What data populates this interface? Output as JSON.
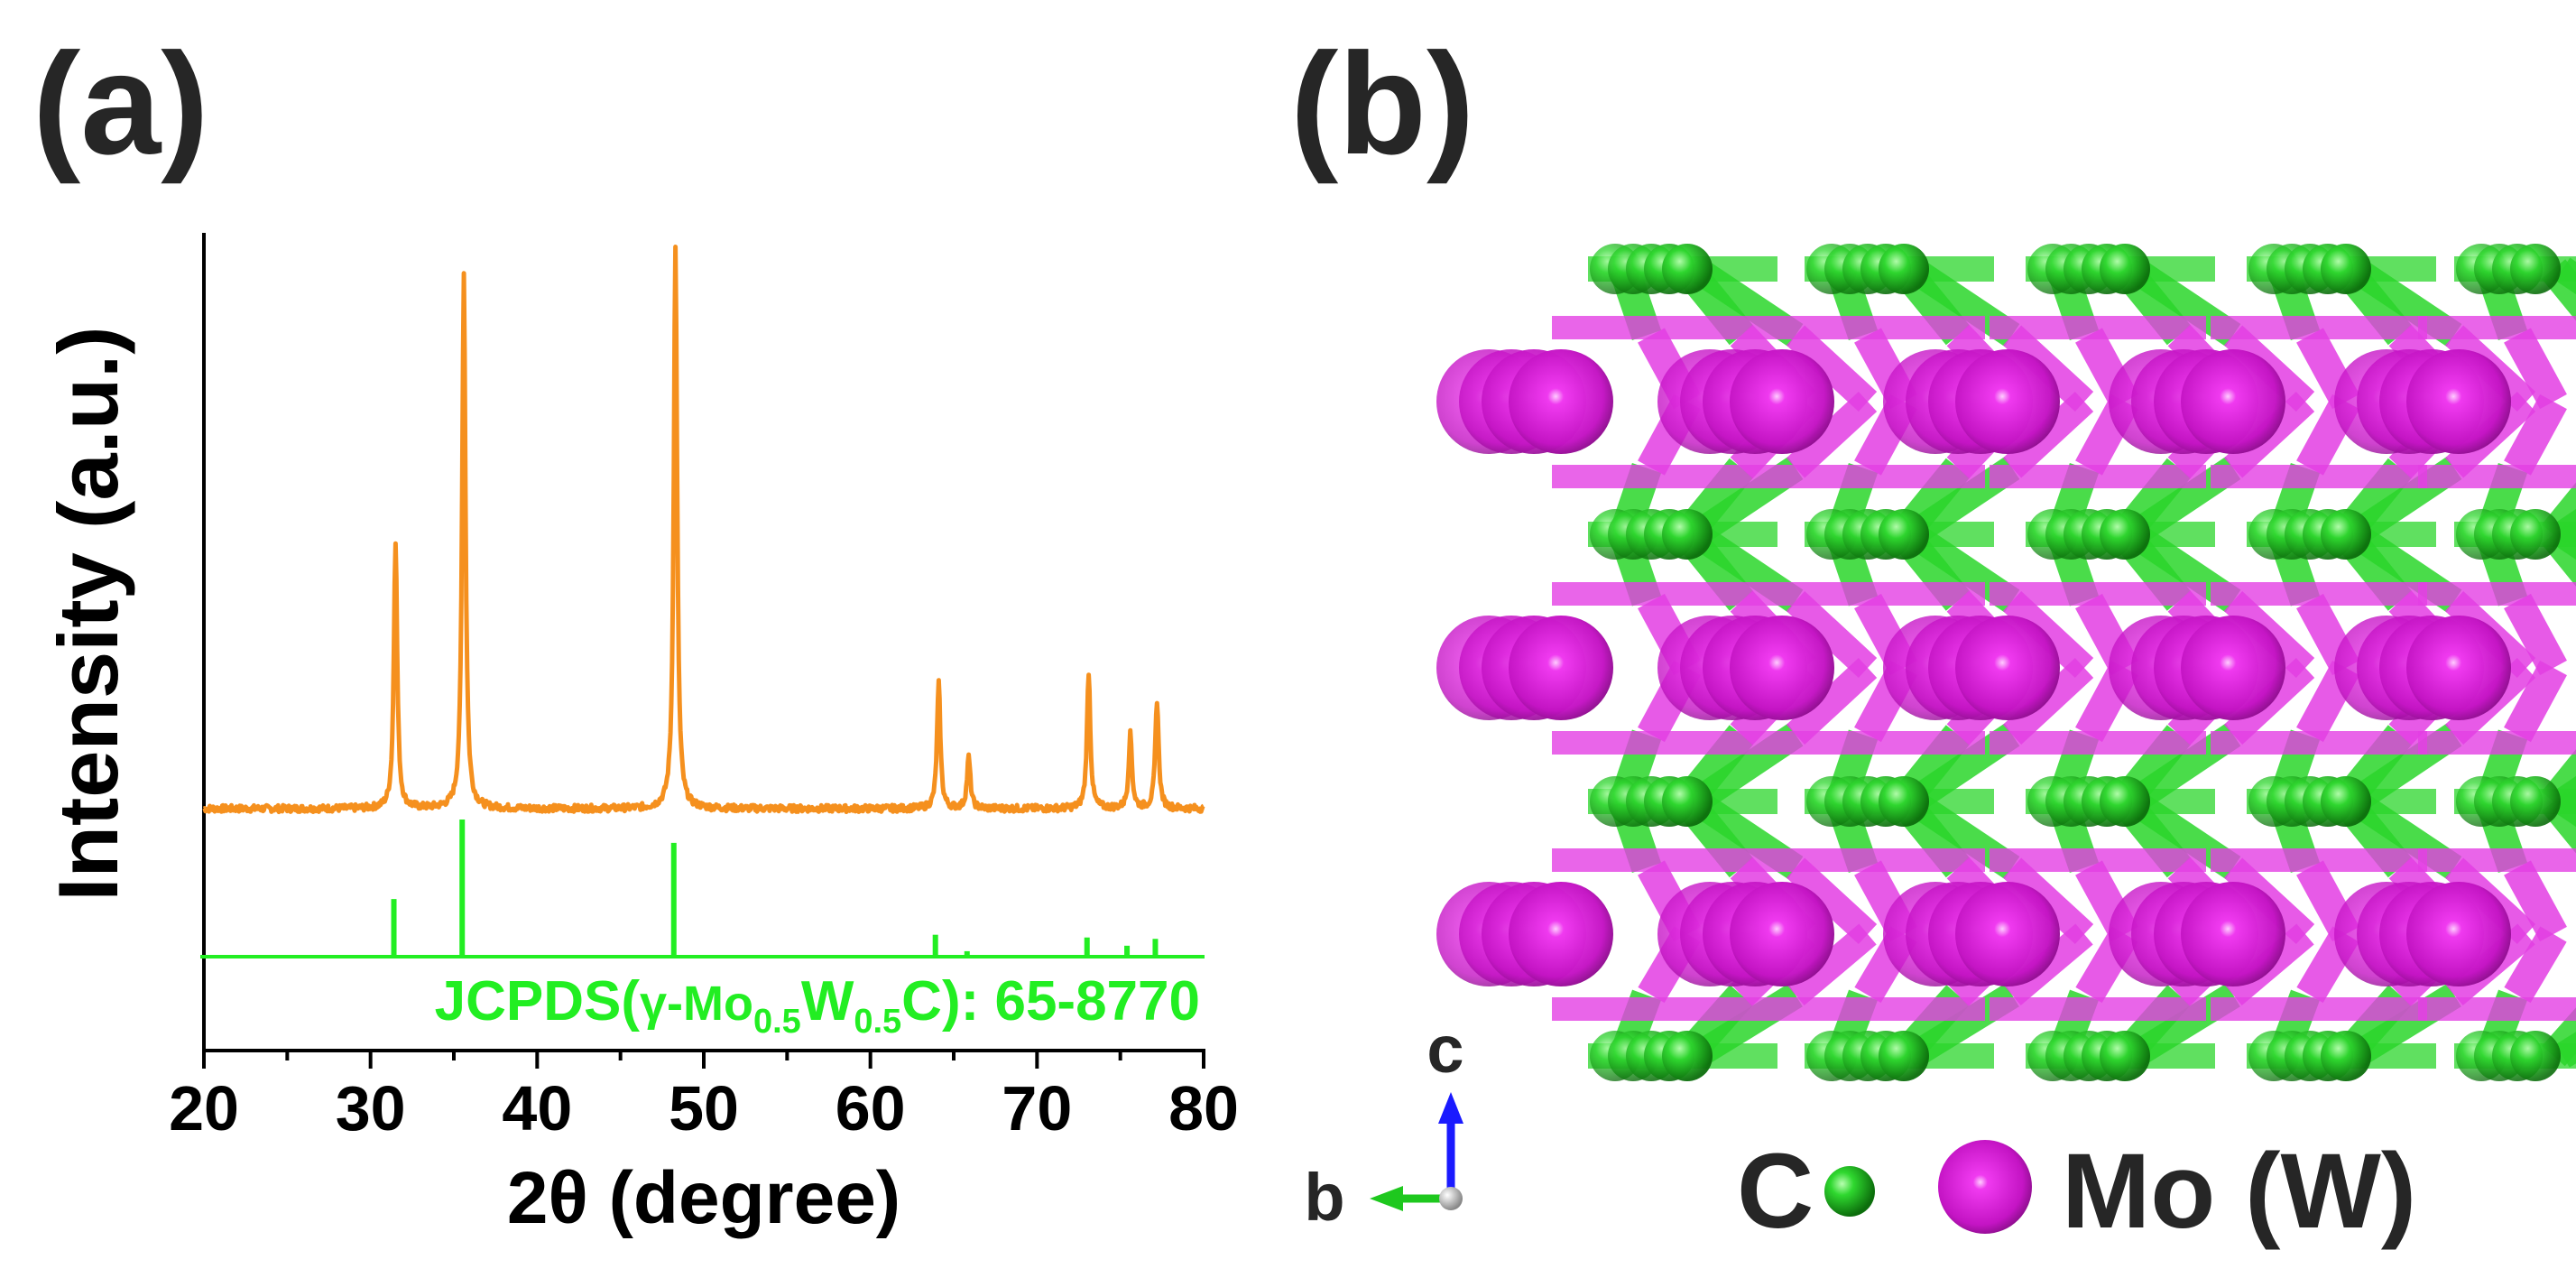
{
  "panel_a": {
    "label": "(a)"
  },
  "panel_b": {
    "label": "(b)"
  },
  "chart_data": {
    "type": "line",
    "xlabel": "2θ (degree)",
    "ylabel": "Intensity (a.u.)",
    "xlim": [
      20,
      80
    ],
    "xticks": [
      "20",
      "30",
      "40",
      "50",
      "60",
      "70",
      "80"
    ],
    "grid": false,
    "series": [
      {
        "name": "",
        "color": "#f5901e",
        "baseline": 0.0,
        "peaks": [
          {
            "x": 31.5,
            "y": 0.47
          },
          {
            "x": 35.6,
            "y": 0.94
          },
          {
            "x": 48.3,
            "y": 0.99
          },
          {
            "x": 64.1,
            "y": 0.22
          },
          {
            "x": 65.9,
            "y": 0.09
          },
          {
            "x": 73.1,
            "y": 0.24
          },
          {
            "x": 75.6,
            "y": 0.13
          },
          {
            "x": 77.2,
            "y": 0.19
          }
        ]
      },
      {
        "name": "JCPDS(γ-Mo0.5W0.5C): 65-8770",
        "color": "#22ee22",
        "type": "stick",
        "sticks": [
          {
            "x": 31.4,
            "y": 0.42
          },
          {
            "x": 35.5,
            "y": 1.0
          },
          {
            "x": 48.2,
            "y": 0.83
          },
          {
            "x": 63.9,
            "y": 0.16
          },
          {
            "x": 65.8,
            "y": 0.04
          },
          {
            "x": 73.0,
            "y": 0.14
          },
          {
            "x": 75.4,
            "y": 0.08
          },
          {
            "x": 77.1,
            "y": 0.13
          }
        ]
      }
    ],
    "reference_label": {
      "prefix": "JCPDS(",
      "gamma": "γ-Mo",
      "sub1": "0.5",
      "w": "W",
      "sub2": "0.5",
      "suffix": "C): 65-8770"
    }
  },
  "structure": {
    "axis_c": "c",
    "axis_b": "b",
    "legend_c": "C",
    "legend_mo": "Mo (W)",
    "colors": {
      "carbon": "#1fcc1f",
      "metal": "#d21cd2",
      "bond_c": "#2bd62b",
      "bond_m": "#e33ee3",
      "axis_c": "#1a1aff",
      "axis_b": "#1ec81e"
    }
  }
}
